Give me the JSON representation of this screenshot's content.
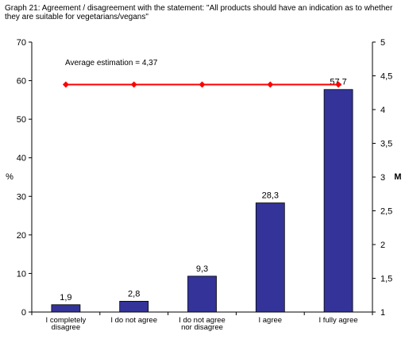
{
  "title": "Graph 21: Agreement / disagreement with the statement: \"All products should have an indication as to whether they are suitable for vegetarians/vegans\"",
  "chart_data": {
    "type": "bar",
    "categories": [
      [
        "I completely",
        "disagree"
      ],
      [
        "I do not agree"
      ],
      [
        "I do not agree",
        "nor disagree"
      ],
      [
        "I agree"
      ],
      [
        "I fully agree"
      ]
    ],
    "values": [
      1.9,
      2.8,
      9.3,
      28.3,
      57.7
    ],
    "value_labels": [
      "1,9",
      "2,8",
      "9,3",
      "28,3",
      "57,7"
    ],
    "ylabel": "%",
    "ylabel_right": "M",
    "ylim": [
      0,
      70
    ],
    "yticks": [
      0,
      10,
      20,
      30,
      40,
      50,
      60,
      70
    ],
    "ylim_right": [
      1,
      5
    ],
    "yticks_right": [
      "1",
      "1,5",
      "2",
      "2,5",
      "3",
      "3,5",
      "4",
      "4,5",
      "5"
    ],
    "average": {
      "label": "Average estimation = 4,37",
      "value": 4.37
    },
    "bar_color": "#333399",
    "line_color": "#ff0000",
    "grid": false
  }
}
